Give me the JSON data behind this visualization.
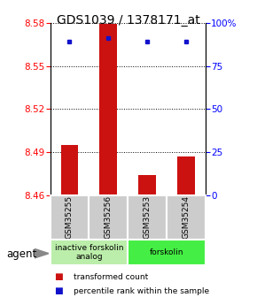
{
  "title": "GDS1039 / 1378171_at",
  "samples": [
    "GSM35255",
    "GSM35256",
    "GSM35253",
    "GSM35254"
  ],
  "bar_values": [
    8.495,
    8.579,
    8.474,
    8.487
  ],
  "percentile_values": [
    89,
    91,
    89,
    89
  ],
  "y_min": 8.46,
  "y_max": 8.58,
  "y_ticks": [
    8.46,
    8.49,
    8.52,
    8.55,
    8.58
  ],
  "y_ticks_right": [
    0,
    25,
    50,
    75,
    100
  ],
  "bar_color": "#cc1111",
  "dot_color": "#1111cc",
  "bar_width": 0.45,
  "groups": [
    {
      "label": "inactive forskolin\nanalog",
      "samples_idx": [
        0,
        1
      ],
      "color": "#bbeeaa"
    },
    {
      "label": "forskolin",
      "samples_idx": [
        2,
        3
      ],
      "color": "#44ee44"
    }
  ],
  "agent_label": "agent",
  "legend_items": [
    {
      "color": "#cc1111",
      "label": "transformed count"
    },
    {
      "color": "#1111cc",
      "label": "percentile rank within the sample"
    }
  ],
  "title_fontsize": 10,
  "tick_fontsize": 7.5,
  "label_fontsize": 7
}
